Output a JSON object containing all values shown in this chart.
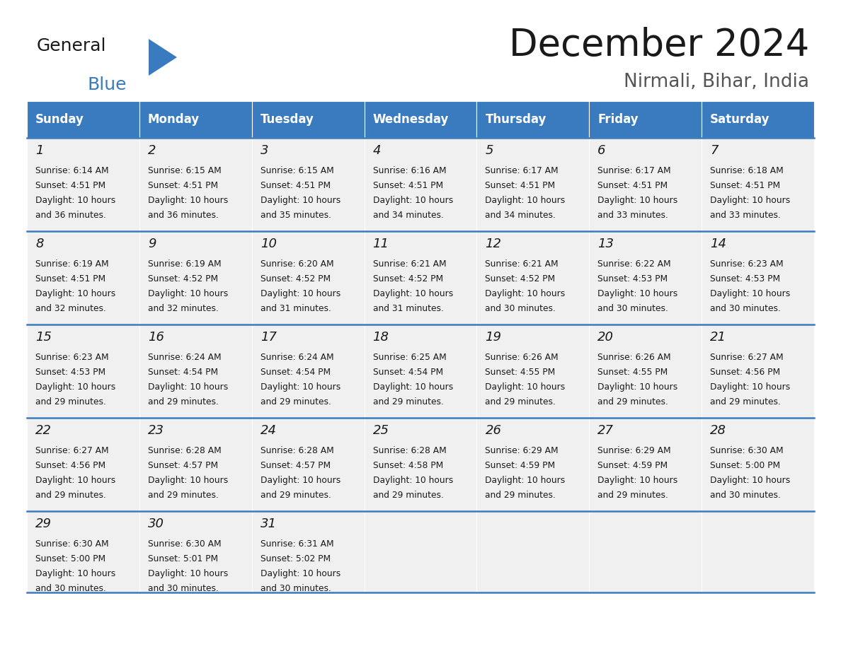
{
  "title": "December 2024",
  "subtitle": "Nirmali, Bihar, India",
  "header_color": "#3a7bbf",
  "header_text_color": "#ffffff",
  "background_color": "#ffffff",
  "cell_bg_color": "#f0f0f0",
  "days_of_week": [
    "Sunday",
    "Monday",
    "Tuesday",
    "Wednesday",
    "Thursday",
    "Friday",
    "Saturday"
  ],
  "weeks": [
    [
      {
        "day": 1,
        "sunrise": "6:14 AM",
        "sunset": "4:51 PM",
        "daylight_hrs": 10,
        "daylight_min": 36
      },
      {
        "day": 2,
        "sunrise": "6:15 AM",
        "sunset": "4:51 PM",
        "daylight_hrs": 10,
        "daylight_min": 36
      },
      {
        "day": 3,
        "sunrise": "6:15 AM",
        "sunset": "4:51 PM",
        "daylight_hrs": 10,
        "daylight_min": 35
      },
      {
        "day": 4,
        "sunrise": "6:16 AM",
        "sunset": "4:51 PM",
        "daylight_hrs": 10,
        "daylight_min": 34
      },
      {
        "day": 5,
        "sunrise": "6:17 AM",
        "sunset": "4:51 PM",
        "daylight_hrs": 10,
        "daylight_min": 34
      },
      {
        "day": 6,
        "sunrise": "6:17 AM",
        "sunset": "4:51 PM",
        "daylight_hrs": 10,
        "daylight_min": 33
      },
      {
        "day": 7,
        "sunrise": "6:18 AM",
        "sunset": "4:51 PM",
        "daylight_hrs": 10,
        "daylight_min": 33
      }
    ],
    [
      {
        "day": 8,
        "sunrise": "6:19 AM",
        "sunset": "4:51 PM",
        "daylight_hrs": 10,
        "daylight_min": 32
      },
      {
        "day": 9,
        "sunrise": "6:19 AM",
        "sunset": "4:52 PM",
        "daylight_hrs": 10,
        "daylight_min": 32
      },
      {
        "day": 10,
        "sunrise": "6:20 AM",
        "sunset": "4:52 PM",
        "daylight_hrs": 10,
        "daylight_min": 31
      },
      {
        "day": 11,
        "sunrise": "6:21 AM",
        "sunset": "4:52 PM",
        "daylight_hrs": 10,
        "daylight_min": 31
      },
      {
        "day": 12,
        "sunrise": "6:21 AM",
        "sunset": "4:52 PM",
        "daylight_hrs": 10,
        "daylight_min": 30
      },
      {
        "day": 13,
        "sunrise": "6:22 AM",
        "sunset": "4:53 PM",
        "daylight_hrs": 10,
        "daylight_min": 30
      },
      {
        "day": 14,
        "sunrise": "6:23 AM",
        "sunset": "4:53 PM",
        "daylight_hrs": 10,
        "daylight_min": 30
      }
    ],
    [
      {
        "day": 15,
        "sunrise": "6:23 AM",
        "sunset": "4:53 PM",
        "daylight_hrs": 10,
        "daylight_min": 29
      },
      {
        "day": 16,
        "sunrise": "6:24 AM",
        "sunset": "4:54 PM",
        "daylight_hrs": 10,
        "daylight_min": 29
      },
      {
        "day": 17,
        "sunrise": "6:24 AM",
        "sunset": "4:54 PM",
        "daylight_hrs": 10,
        "daylight_min": 29
      },
      {
        "day": 18,
        "sunrise": "6:25 AM",
        "sunset": "4:54 PM",
        "daylight_hrs": 10,
        "daylight_min": 29
      },
      {
        "day": 19,
        "sunrise": "6:26 AM",
        "sunset": "4:55 PM",
        "daylight_hrs": 10,
        "daylight_min": 29
      },
      {
        "day": 20,
        "sunrise": "6:26 AM",
        "sunset": "4:55 PM",
        "daylight_hrs": 10,
        "daylight_min": 29
      },
      {
        "day": 21,
        "sunrise": "6:27 AM",
        "sunset": "4:56 PM",
        "daylight_hrs": 10,
        "daylight_min": 29
      }
    ],
    [
      {
        "day": 22,
        "sunrise": "6:27 AM",
        "sunset": "4:56 PM",
        "daylight_hrs": 10,
        "daylight_min": 29
      },
      {
        "day": 23,
        "sunrise": "6:28 AM",
        "sunset": "4:57 PM",
        "daylight_hrs": 10,
        "daylight_min": 29
      },
      {
        "day": 24,
        "sunrise": "6:28 AM",
        "sunset": "4:57 PM",
        "daylight_hrs": 10,
        "daylight_min": 29
      },
      {
        "day": 25,
        "sunrise": "6:28 AM",
        "sunset": "4:58 PM",
        "daylight_hrs": 10,
        "daylight_min": 29
      },
      {
        "day": 26,
        "sunrise": "6:29 AM",
        "sunset": "4:59 PM",
        "daylight_hrs": 10,
        "daylight_min": 29
      },
      {
        "day": 27,
        "sunrise": "6:29 AM",
        "sunset": "4:59 PM",
        "daylight_hrs": 10,
        "daylight_min": 29
      },
      {
        "day": 28,
        "sunrise": "6:30 AM",
        "sunset": "5:00 PM",
        "daylight_hrs": 10,
        "daylight_min": 30
      }
    ],
    [
      {
        "day": 29,
        "sunrise": "6:30 AM",
        "sunset": "5:00 PM",
        "daylight_hrs": 10,
        "daylight_min": 30
      },
      {
        "day": 30,
        "sunrise": "6:30 AM",
        "sunset": "5:01 PM",
        "daylight_hrs": 10,
        "daylight_min": 30
      },
      {
        "day": 31,
        "sunrise": "6:31 AM",
        "sunset": "5:02 PM",
        "daylight_hrs": 10,
        "daylight_min": 30
      },
      null,
      null,
      null,
      null
    ]
  ]
}
